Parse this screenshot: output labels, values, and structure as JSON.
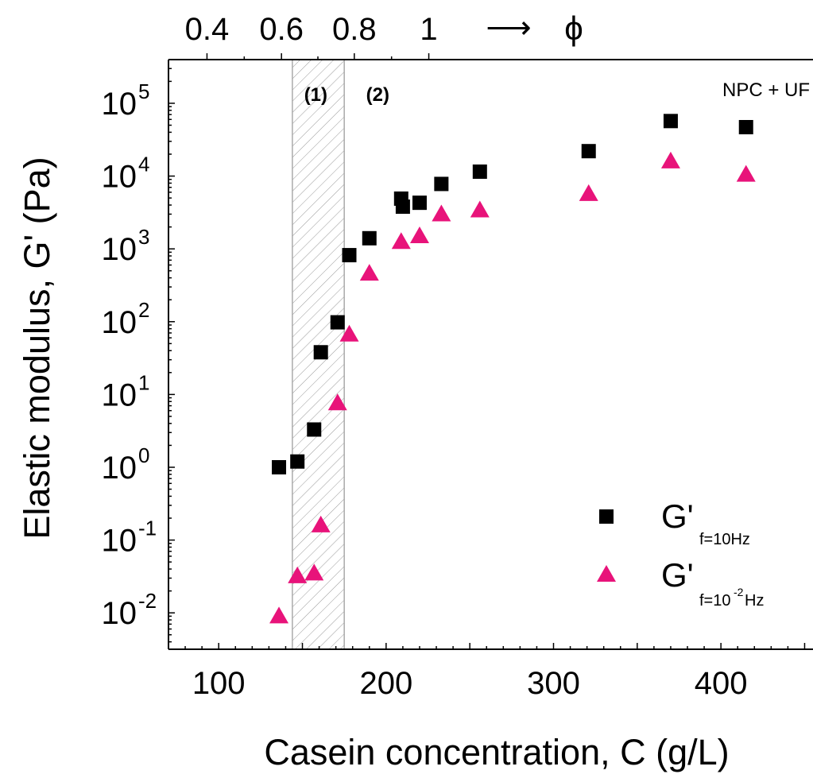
{
  "chart_data": {
    "type": "scatter",
    "title": "",
    "xlabel": "Casein concentration, C (g/L)",
    "ylabel": "Elastic modulus, G' (Pa)",
    "x_scale": "linear",
    "y_scale": "log",
    "xlim": [
      70,
      455
    ],
    "ylim_log10": [
      -2.5,
      5.6
    ],
    "x_ticks": [
      100,
      200,
      300,
      400
    ],
    "x_tick_labels": [
      "100",
      "200",
      "300",
      "400"
    ],
    "y_ticks_log10": [
      -2,
      -1,
      0,
      1,
      2,
      3,
      4,
      5
    ],
    "y_tick_labels": [
      {
        "base": "10",
        "exp": "-2"
      },
      {
        "base": "10",
        "exp": "-1"
      },
      {
        "base": "10",
        "exp": "0"
      },
      {
        "base": "10",
        "exp": "1"
      },
      {
        "base": "10",
        "exp": "2"
      },
      {
        "base": "10",
        "exp": "3"
      },
      {
        "base": "10",
        "exp": "4"
      },
      {
        "base": "10",
        "exp": "5"
      }
    ],
    "top_axis": {
      "ticks": [
        0.4,
        0.6,
        0.8,
        1
      ],
      "tick_labels": [
        "0.4",
        "0.6",
        "0.8",
        "1"
      ],
      "tick_positions_in_C": [
        93,
        137.5,
        181,
        225.5
      ],
      "arrow_text": "⟶",
      "variable": "ϕ"
    },
    "shaded_band": {
      "x_range": [
        144,
        175
      ],
      "hatch": "diagonal"
    },
    "region_labels": [
      {
        "text": "(1)",
        "x": 158,
        "y_log10": 5.12
      },
      {
        "text": "(2)",
        "x": 195,
        "y_log10": 5.12
      }
    ],
    "annotation": {
      "text": "NPC + UF",
      "x": 443,
      "y_log10": 5.12
    },
    "legend": {
      "position": "bottom-right"
    },
    "series": [
      {
        "name_base": "G'",
        "name_sub": "f=10Hz",
        "marker": "square",
        "color": "#000000",
        "points": [
          [
            136,
            1.0
          ],
          [
            147,
            1.2
          ],
          [
            157,
            3.3
          ],
          [
            161,
            38
          ],
          [
            171,
            98
          ],
          [
            178,
            820
          ],
          [
            190,
            1400
          ],
          [
            209,
            4900
          ],
          [
            210,
            3800
          ],
          [
            220,
            4300
          ],
          [
            233,
            7800
          ],
          [
            256,
            11500
          ],
          [
            321,
            22000
          ],
          [
            370,
            57000
          ],
          [
            415,
            47000
          ]
        ]
      },
      {
        "name_base": "G'",
        "name_sub_pre": "f=10",
        "name_sub_sup": "-2",
        "name_sub_post": "Hz",
        "marker": "triangle",
        "color": "#e8137a",
        "points": [
          [
            136,
            0.009
          ],
          [
            147,
            0.032
          ],
          [
            157,
            0.035
          ],
          [
            161,
            0.16
          ],
          [
            171,
            7.6
          ],
          [
            178,
            67
          ],
          [
            190,
            460
          ],
          [
            209,
            1250
          ],
          [
            220,
            1500
          ],
          [
            233,
            3000
          ],
          [
            256,
            3400
          ],
          [
            321,
            5700
          ],
          [
            370,
            16000
          ],
          [
            415,
            10500
          ]
        ]
      }
    ]
  }
}
